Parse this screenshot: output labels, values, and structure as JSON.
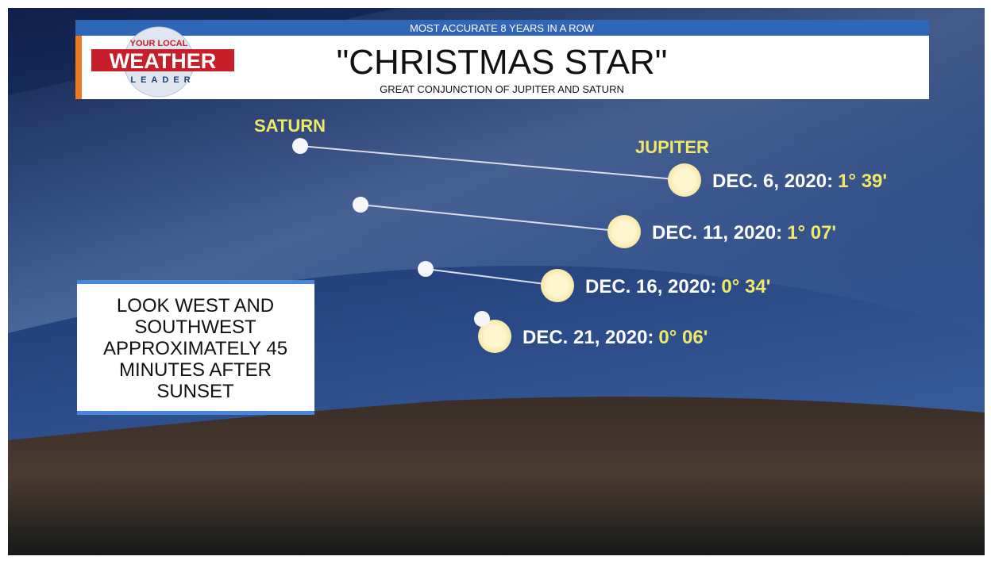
{
  "header": {
    "banner": "MOST ACCURATE 8 YEARS IN A ROW",
    "title": "\"CHRISTMAS STAR\"",
    "subtitle": "GREAT CONJUNCTION OF JUPITER AND SATURN"
  },
  "logo": {
    "top": "YOUR LOCAL",
    "main": "WEATHER",
    "bottom": "LEADER"
  },
  "labels": {
    "saturn": "SATURN",
    "jupiter": "JUPITER"
  },
  "conjunctions": [
    {
      "date": "DEC. 6, 2020:",
      "separation": "1° 39'"
    },
    {
      "date": "DEC. 11, 2020:",
      "separation": "1° 07'"
    },
    {
      "date": "DEC. 16, 2020:",
      "separation": "0° 34'"
    },
    {
      "date": "DEC. 21, 2020:",
      "separation": "0° 06'"
    }
  ],
  "info_box": {
    "lines": [
      "LOOK WEST AND",
      "SOUTHWEST",
      "APPROXIMATELY 45",
      "MINUTES AFTER",
      "SUNSET"
    ]
  }
}
